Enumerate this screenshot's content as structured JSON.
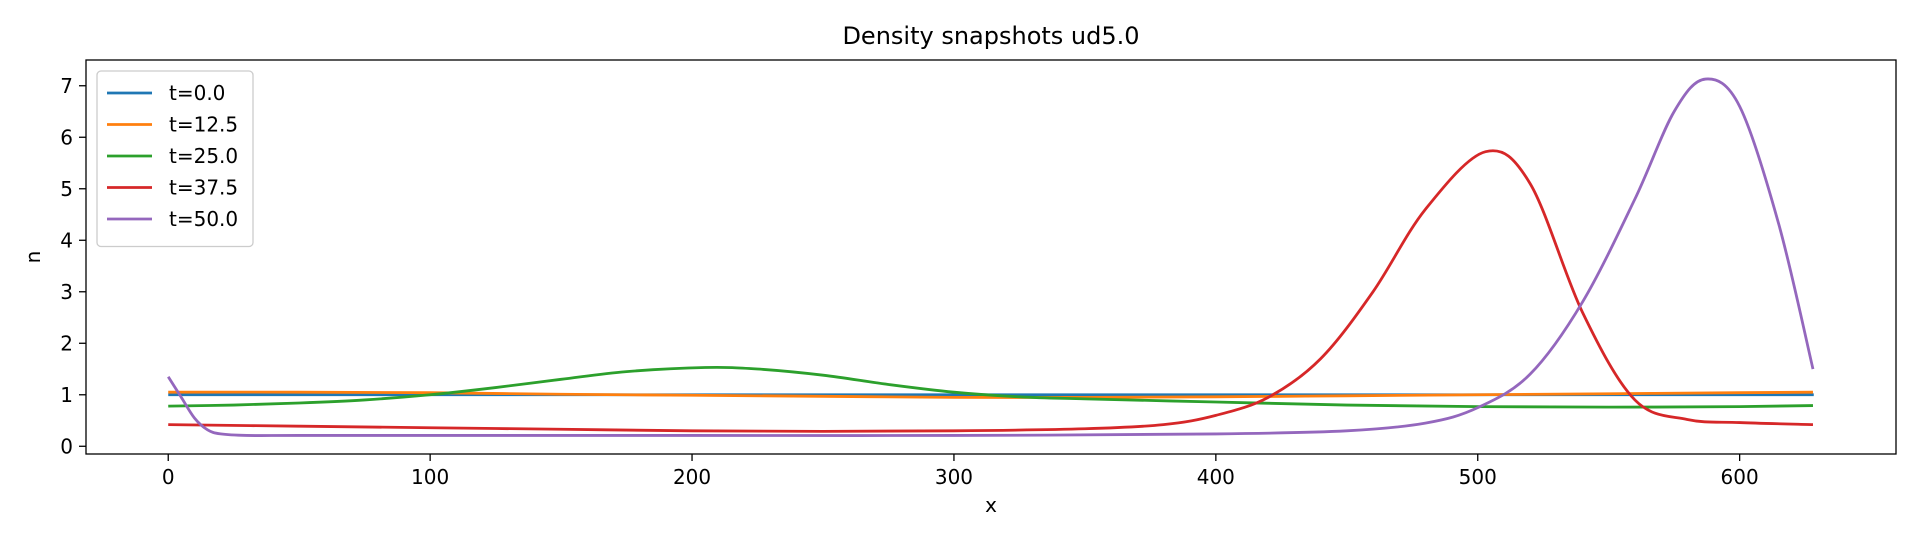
{
  "chart_data": {
    "type": "line",
    "title": "Density snapshots  ud5.0",
    "xlabel": "x",
    "ylabel": "n",
    "xlim": [
      -31.4,
      659.7
    ],
    "ylim": [
      -0.15,
      7.5
    ],
    "xticks": [
      0,
      100,
      200,
      300,
      400,
      500,
      600
    ],
    "yticks": [
      0,
      1,
      2,
      3,
      4,
      5,
      6,
      7
    ],
    "grid": false,
    "legend_position": "top-left",
    "series": [
      {
        "name": "t=0.0",
        "color": "#1f77b4",
        "x": [
          0,
          628.3
        ],
        "y": [
          1.0,
          1.0
        ]
      },
      {
        "name": "t=12.5",
        "color": "#ff7f0e",
        "x": [
          0,
          50,
          100,
          150,
          200,
          250,
          300,
          350,
          400,
          450,
          500,
          550,
          600,
          628
        ],
        "y": [
          1.05,
          1.05,
          1.04,
          1.01,
          0.99,
          0.97,
          0.95,
          0.95,
          0.96,
          0.98,
          1.0,
          1.02,
          1.04,
          1.05
        ]
      },
      {
        "name": "t=25.0",
        "color": "#2ca02c",
        "x": [
          0,
          25,
          50,
          75,
          100,
          125,
          150,
          175,
          205,
          225,
          250,
          275,
          300,
          325,
          350,
          400,
          450,
          500,
          550,
          600,
          628
        ],
        "y": [
          0.78,
          0.8,
          0.84,
          0.9,
          1.0,
          1.14,
          1.3,
          1.45,
          1.53,
          1.5,
          1.38,
          1.2,
          1.05,
          0.96,
          0.92,
          0.86,
          0.8,
          0.77,
          0.76,
          0.77,
          0.79
        ]
      },
      {
        "name": "t=37.5",
        "color": "#d62728",
        "x": [
          0,
          50,
          100,
          150,
          200,
          250,
          300,
          350,
          380,
          400,
          420,
          440,
          460,
          480,
          503,
          520,
          540,
          560,
          580,
          600,
          628
        ],
        "y": [
          0.42,
          0.39,
          0.36,
          0.33,
          0.3,
          0.29,
          0.3,
          0.34,
          0.42,
          0.6,
          0.95,
          1.7,
          3.0,
          4.6,
          5.72,
          5.1,
          2.6,
          0.9,
          0.52,
          0.46,
          0.42
        ]
      },
      {
        "name": "t=50.0",
        "color": "#9467bd",
        "x": [
          0,
          5,
          10,
          15,
          20,
          30,
          50,
          100,
          200,
          300,
          400,
          450,
          480,
          500,
          520,
          540,
          560,
          575,
          587,
          600,
          615,
          628
        ],
        "y": [
          1.35,
          0.95,
          0.55,
          0.32,
          0.24,
          0.21,
          0.21,
          0.21,
          0.21,
          0.21,
          0.24,
          0.3,
          0.45,
          0.75,
          1.4,
          2.8,
          4.8,
          6.5,
          7.13,
          6.6,
          4.3,
          1.5
        ]
      }
    ]
  }
}
